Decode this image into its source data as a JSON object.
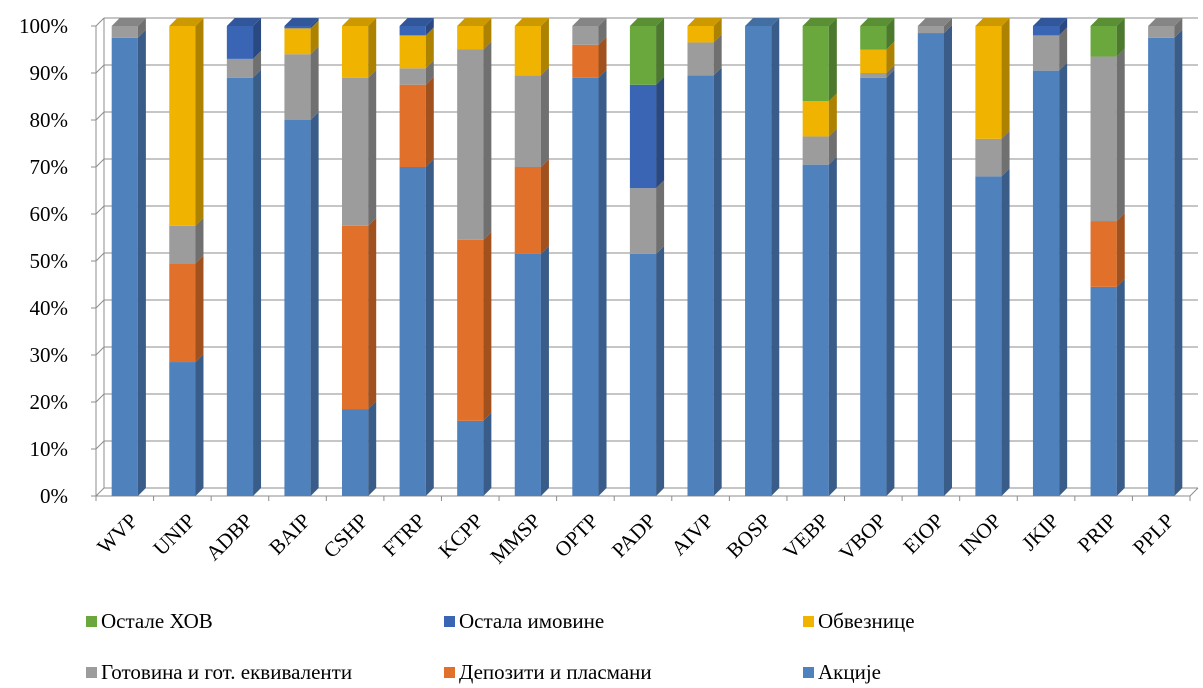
{
  "chart_data": {
    "type": "bar",
    "stacked": true,
    "normalized": true,
    "style": "3d",
    "categories": [
      "WVP",
      "UNIP",
      "ADBP",
      "BAIP",
      "CSHP",
      "FTRP",
      "KCPP",
      "MMSP",
      "OPTP",
      "PADP",
      "AIVP",
      "BOSP",
      "VEBP",
      "VBOP",
      "EIOP",
      "INOP",
      "JKIP",
      "PRIP",
      "PPLP"
    ],
    "y_ticks": [
      "0%",
      "10%",
      "20%",
      "30%",
      "40%",
      "50%",
      "60%",
      "70%",
      "80%",
      "90%",
      "100%"
    ],
    "ylim": [
      0,
      100
    ],
    "grid": true,
    "legend_position": "bottom",
    "series": [
      {
        "name": "Акције",
        "color": "#4f81bd",
        "values": [
          97.5,
          28.5,
          89.0,
          80.0,
          18.5,
          70.0,
          16.0,
          51.5,
          89.0,
          51.5,
          89.5,
          100.0,
          70.5,
          89.0,
          98.5,
          68.0,
          90.5,
          44.5,
          97.5
        ]
      },
      {
        "name": "Депозити и пласмани",
        "color": "#e0702a",
        "values": [
          0,
          21.0,
          0,
          0,
          39.0,
          17.5,
          38.5,
          18.5,
          7.0,
          0,
          0,
          0,
          0,
          0,
          0,
          0,
          0,
          14.0,
          0
        ]
      },
      {
        "name": "Готовина и гот. еквиваленти",
        "color": "#9c9c9c",
        "values": [
          2.5,
          8.0,
          4.0,
          14.0,
          31.5,
          3.5,
          40.5,
          19.5,
          4.0,
          14.0,
          7.0,
          0,
          6.0,
          1.0,
          1.5,
          8.0,
          7.5,
          35.0,
          2.5
        ]
      },
      {
        "name": "Обвезнице",
        "color": "#f0b400",
        "values": [
          0,
          42.5,
          0,
          5.5,
          11.0,
          7.0,
          5.0,
          10.5,
          0,
          0,
          3.5,
          0,
          7.5,
          5.0,
          0,
          24.0,
          0,
          0,
          0
        ]
      },
      {
        "name": "Остала имовине",
        "color": "#3a65b5",
        "values": [
          0,
          0,
          7.0,
          0.5,
          0,
          2.0,
          0,
          0,
          0,
          22.0,
          0,
          0,
          0,
          0,
          0,
          0,
          2.0,
          0,
          0
        ]
      },
      {
        "name": "Остале ХОВ",
        "color": "#6aa83e",
        "values": [
          0,
          0,
          0,
          0,
          0,
          0,
          0,
          0,
          0,
          12.5,
          0,
          0,
          16.0,
          5.0,
          0,
          0,
          0,
          6.5,
          0
        ]
      }
    ]
  },
  "legend": {
    "rows": [
      [
        {
          "label": "Остале ХОВ",
          "color": "#6aa83e"
        },
        {
          "label": "Остала имовине",
          "color": "#3a65b5"
        },
        {
          "label": "Обвезнице",
          "color": "#f0b400"
        }
      ],
      [
        {
          "label": "Готовина и гот. еквиваленти",
          "color": "#9c9c9c"
        },
        {
          "label": "Депозити и пласмани",
          "color": "#e0702a"
        },
        {
          "label": "Акције",
          "color": "#4f81bd"
        }
      ]
    ]
  }
}
